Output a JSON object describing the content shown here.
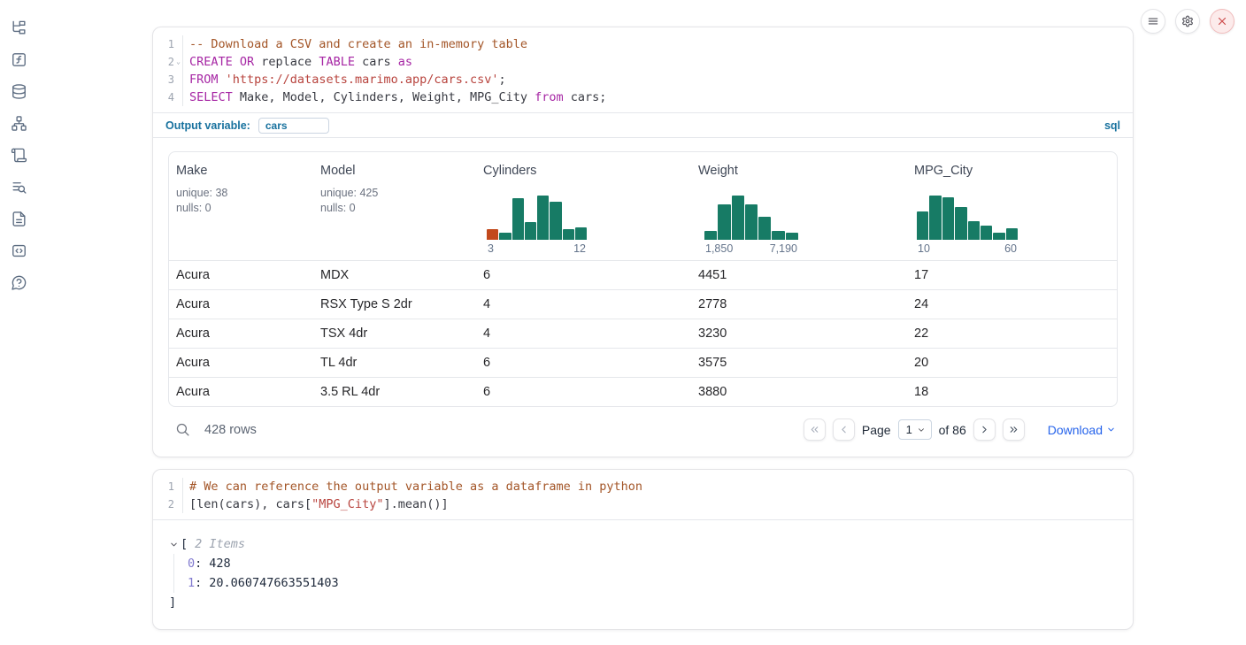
{
  "colors": {
    "accent_link": "#2563eb",
    "sql_accent": "#17719e",
    "histogram_teal": "#177b65",
    "histogram_orange": "#c2491c",
    "danger": "#d14343"
  },
  "sidebar": {
    "icons": [
      "file-tree-icon",
      "function-icon",
      "database-icon",
      "dependency-graph-icon",
      "scroll-icon",
      "logs-search-icon",
      "document-icon",
      "code-snippets-icon",
      "help-icon"
    ]
  },
  "header_controls": {
    "buttons": [
      {
        "name": "notebook-menu",
        "icon": "menu-icon"
      },
      {
        "name": "settings",
        "icon": "gear-icon"
      },
      {
        "name": "shutdown",
        "icon": "close-x-icon"
      }
    ]
  },
  "sql_cell": {
    "line_numbers": [
      "1",
      "2",
      "3",
      "4"
    ],
    "fold_chevron_line": "2",
    "code": [
      {
        "tokens": [
          {
            "c": "com",
            "t": "-- Download a CSV and create an in-memory table"
          }
        ]
      },
      {
        "tokens": [
          {
            "c": "kw",
            "t": "CREATE OR"
          },
          {
            "c": "pl",
            "t": " replace "
          },
          {
            "c": "kw",
            "t": "TABLE"
          },
          {
            "c": "pl",
            "t": " cars "
          },
          {
            "c": "kw",
            "t": "as"
          }
        ]
      },
      {
        "tokens": [
          {
            "c": "kw",
            "t": "FROM"
          },
          {
            "c": "pl",
            "t": " "
          },
          {
            "c": "str",
            "t": "'https://datasets.marimo.app/cars.csv'"
          },
          {
            "c": "pl",
            "t": ";"
          }
        ]
      },
      {
        "tokens": [
          {
            "c": "kw",
            "t": "SELECT"
          },
          {
            "c": "pl",
            "t": " Make, Model, Cylinders, Weight, MPG_City "
          },
          {
            "c": "kw",
            "t": "from"
          },
          {
            "c": "pl",
            "t": " cars;"
          }
        ]
      }
    ],
    "output_variable_label": "Output variable:",
    "output_variable_value": "cars",
    "language_label": "sql"
  },
  "table": {
    "columns": [
      {
        "label": "Make",
        "stats": [
          "unique: 38",
          "nulls: 0"
        ]
      },
      {
        "label": "Model",
        "stats": [
          "unique: 425",
          "nulls: 0"
        ]
      },
      {
        "label": "Cylinders",
        "histogram": {
          "min_label": "3",
          "max_label": "12",
          "values": [
            12,
            8,
            47,
            20,
            50,
            43,
            12,
            14
          ],
          "bar_color": "#177b65",
          "first_bar_color": "#c2491c"
        }
      },
      {
        "label": "Weight",
        "histogram": {
          "min_label": "1,850",
          "max_label": "7,190",
          "values": [
            10,
            38,
            47,
            38,
            25,
            10,
            8
          ],
          "bar_color": "#177b65"
        }
      },
      {
        "label": "MPG_City",
        "histogram": {
          "min_label": "10",
          "max_label": "60",
          "values": [
            30,
            47,
            45,
            35,
            20,
            15,
            8,
            12
          ],
          "bar_color": "#177b65"
        }
      }
    ],
    "rows": [
      [
        "Acura",
        "MDX",
        "6",
        "4451",
        "17"
      ],
      [
        "Acura",
        "RSX Type S 2dr",
        "4",
        "2778",
        "24"
      ],
      [
        "Acura",
        "TSX 4dr",
        "4",
        "3230",
        "22"
      ],
      [
        "Acura",
        "TL 4dr",
        "6",
        "3575",
        "20"
      ],
      [
        "Acura",
        "3.5 RL 4dr",
        "6",
        "3880",
        "18"
      ]
    ],
    "footer": {
      "row_count": "428 rows",
      "page_label": "Page",
      "page_value": "1",
      "total_pages_label": "of 86",
      "download_label": "Download",
      "nav_icons": [
        "chevrons-left-icon",
        "chevron-left-icon",
        "chevron-right-icon",
        "chevrons-right-icon"
      ]
    }
  },
  "python_cell": {
    "line_numbers": [
      "1",
      "2"
    ],
    "code": [
      {
        "tokens": [
          {
            "c": "com",
            "t": "# We can reference the output variable as a dataframe in python"
          }
        ]
      },
      {
        "tokens": [
          {
            "c": "pl",
            "t": "[len(cars), cars["
          },
          {
            "c": "str",
            "t": "\"MPG_City\""
          },
          {
            "c": "pl",
            "t": "].mean()]"
          }
        ]
      }
    ]
  },
  "result_tree": {
    "open_bracket": "[",
    "items_label": "2 Items",
    "entries": [
      {
        "key": "0",
        "separator": ":",
        "value": "428"
      },
      {
        "key": "1",
        "separator": ":",
        "value": "20.060747663551403"
      }
    ],
    "close_bracket": "]"
  }
}
